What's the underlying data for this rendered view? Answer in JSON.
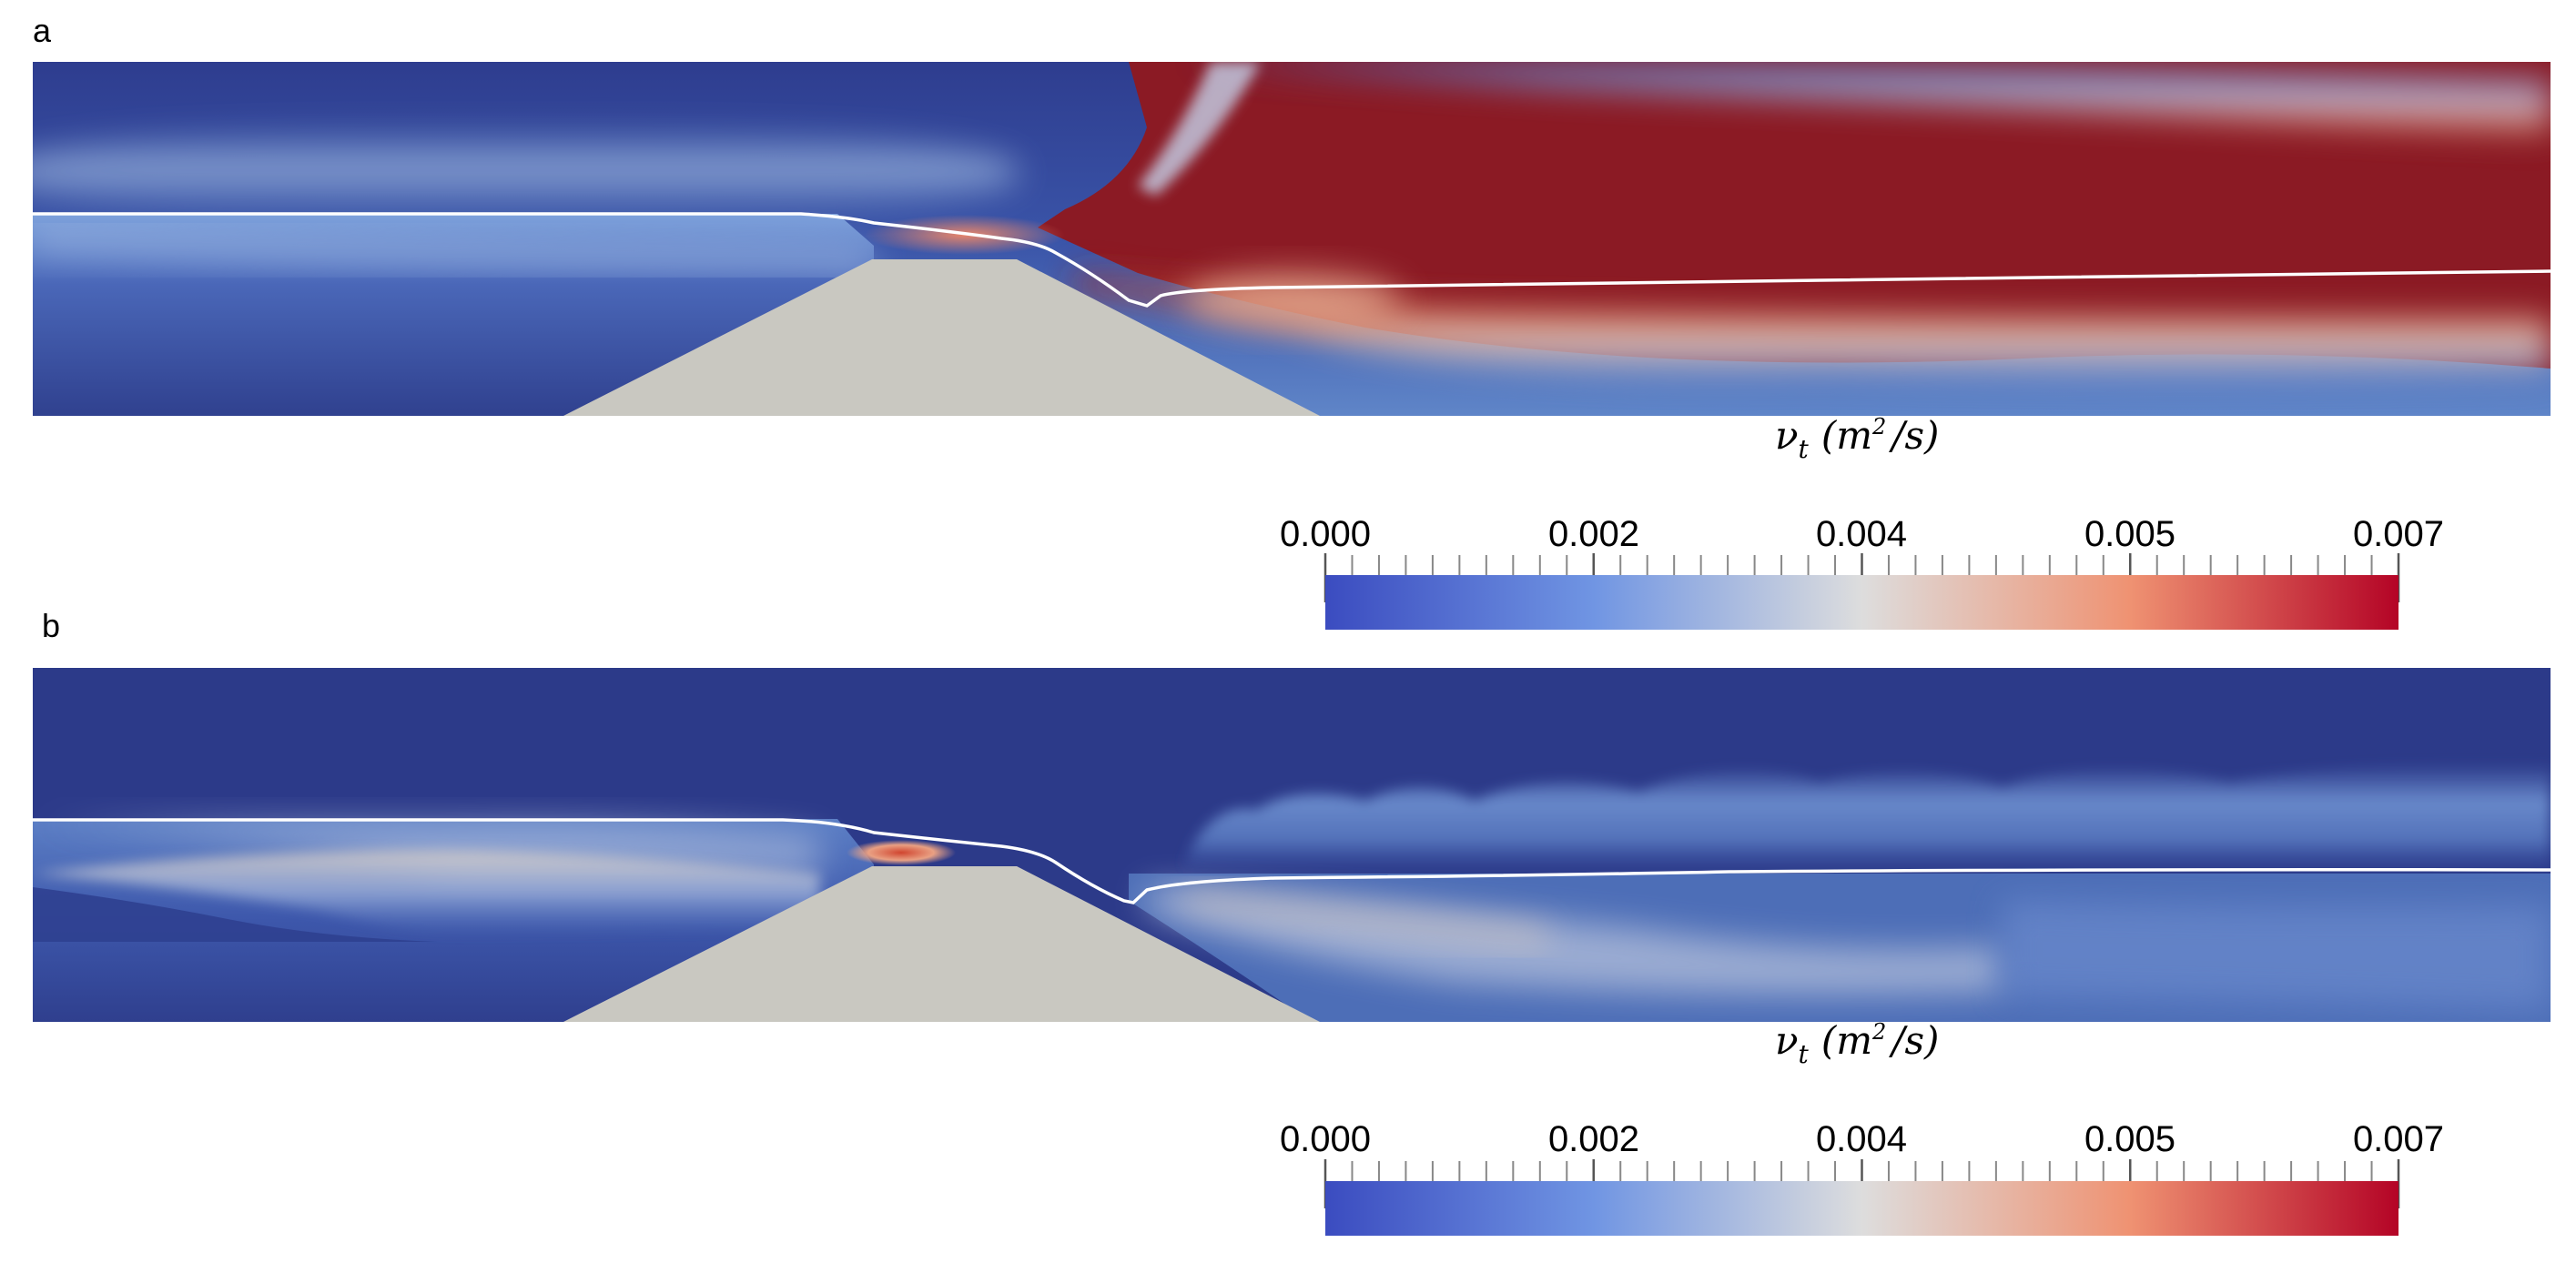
{
  "figure": {
    "panels": [
      {
        "label": "a",
        "colorbar": {
          "title": {
            "symbol": "ν",
            "subscript": "t",
            "open": "(",
            "unit_base": "m",
            "unit_exp": "2",
            "unit_rest": "/s)"
          },
          "tick_labels": [
            "0.000",
            "0.002",
            "0.004",
            "0.005",
            "0.007"
          ]
        }
      },
      {
        "label": "b",
        "colorbar": {
          "title": {
            "symbol": "ν",
            "subscript": "t",
            "open": "(",
            "unit_base": "m",
            "unit_exp": "2",
            "unit_rest": "/s)"
          },
          "tick_labels": [
            "0.000",
            "0.002",
            "0.004",
            "0.005",
            "0.007"
          ]
        }
      }
    ],
    "colormap": {
      "name": "cool-to-warm",
      "low": "#3b4cc0",
      "mid": "#dddddd",
      "high": "#b40426",
      "background_low": "#2c3a89",
      "saturated_high": "#8b1a24"
    },
    "obstacle_color": "#c9c8c1",
    "free_surface_color": "#ffffff"
  }
}
